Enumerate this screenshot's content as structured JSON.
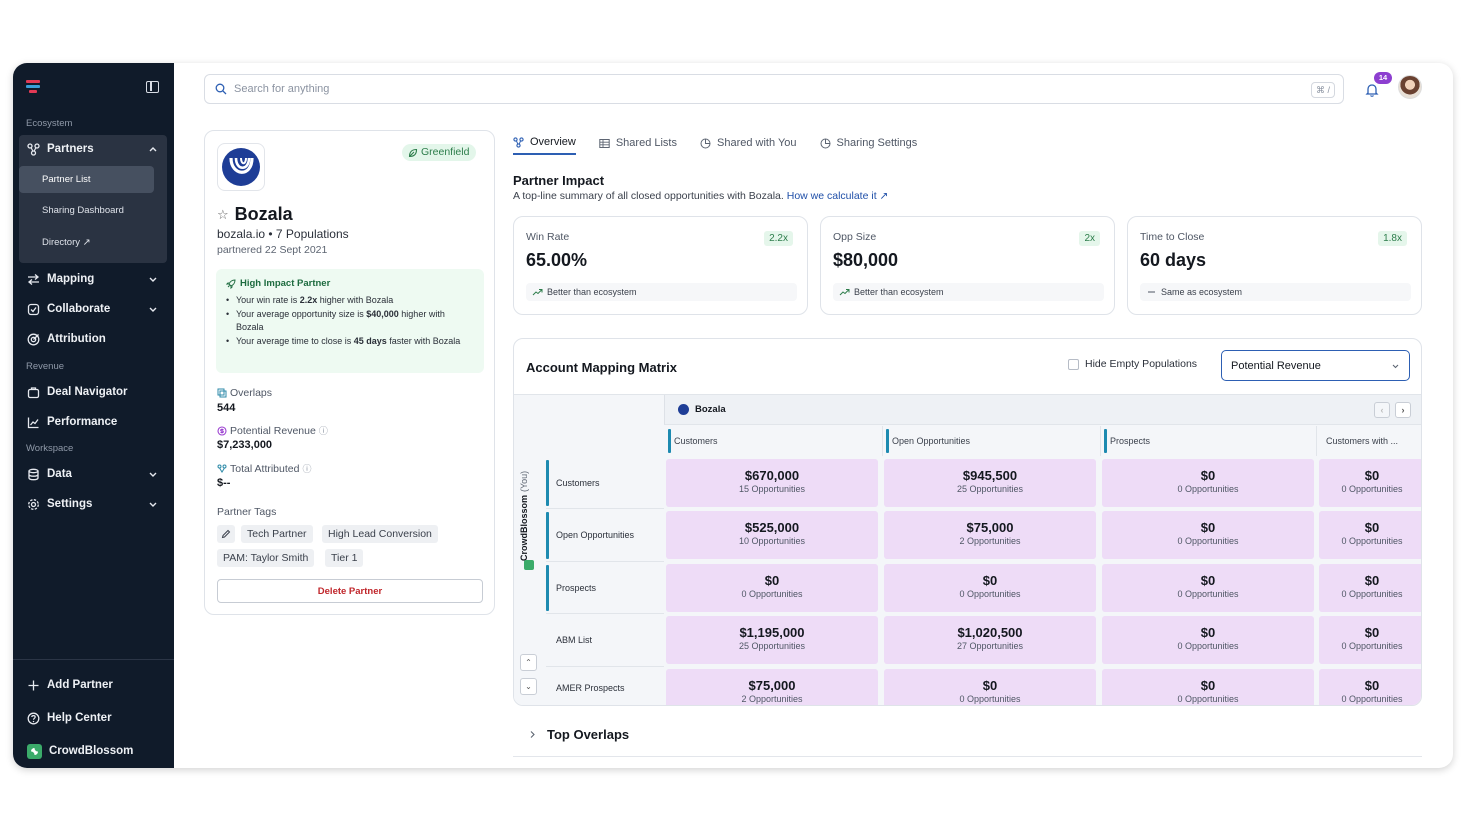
{
  "sidebar": {
    "sections": {
      "ecosystem": "Ecosystem",
      "revenue": "Revenue",
      "workspace": "Workspace"
    },
    "partners": {
      "label": "Partners",
      "icon": "partners-icon",
      "sub": [
        "Partner List",
        "Sharing Dashboard",
        "Directory ↗"
      ]
    },
    "items": {
      "mapping": "Mapping",
      "collaborate": "Collaborate",
      "attribution": "Attribution",
      "deal_navigator": "Deal Navigator",
      "performance": "Performance",
      "data": "Data",
      "settings": "Settings"
    },
    "bottom": {
      "add_partner": "Add Partner",
      "help_center": "Help Center",
      "org": "CrowdBlossom"
    }
  },
  "search": {
    "placeholder": "Search for anything",
    "shortcut": "⌘ /"
  },
  "notifications": {
    "count": "14"
  },
  "partner": {
    "status": "Greenfield",
    "name": "Bozala",
    "domain_populations": "bozala.io • 7 Populations",
    "partnered": "partnered 22 Sept 2021",
    "high_impact": {
      "title": "High Impact Partner",
      "b1_pre": "Your win rate is ",
      "b1_bold": "2.2x",
      "b1_post": " higher with Bozala",
      "b2_pre": "Your average opportunity size is ",
      "b2_bold": "$40,000",
      "b2_post": " higher with Bozala",
      "b3_pre": "Your average time to close is ",
      "b3_bold": "45 days",
      "b3_post": " faster with Bozala"
    },
    "overlaps_label": "Overlaps",
    "overlaps_value": "544",
    "potential_label": "Potential Revenue",
    "potential_value": "$7,233,000",
    "attributed_label": "Total Attributed",
    "attributed_value": "$--",
    "tags_label": "Partner Tags",
    "tags": [
      "Tech Partner",
      "High Lead Conversion",
      "PAM: Taylor Smith",
      "Tier 1"
    ],
    "delete_label": "Delete Partner"
  },
  "tabs": [
    "Overview",
    "Shared Lists",
    "Shared with You",
    "Sharing Settings"
  ],
  "impact": {
    "title": "Partner Impact",
    "subtitle": "A top-line summary of all closed opportunities with Bozala.",
    "link": "How we calculate it ↗",
    "kpis": [
      {
        "label": "Win Rate",
        "mult": "2.2x",
        "value": "65.00%",
        "compare": "Better than ecosystem"
      },
      {
        "label": "Opp Size",
        "mult": "2x",
        "value": "$80,000",
        "compare": "Better than ecosystem"
      },
      {
        "label": "Time to Close",
        "mult": "1.8x",
        "value": "60 days",
        "compare": "Same as ecosystem"
      }
    ]
  },
  "matrix": {
    "title": "Account Mapping Matrix",
    "hide_empty": "Hide Empty Populations",
    "metric": "Potential Revenue",
    "partner": "Bozala",
    "you_org": "CrowdBlossom",
    "you_suffix": "(You)",
    "columns": [
      "Customers",
      "Open Opportunities",
      "Prospects",
      "Customers with ..."
    ],
    "rows": [
      {
        "label": "Customers",
        "cells": [
          [
            "$670,000",
            "15 Opportunities"
          ],
          [
            "$945,500",
            "25 Opportunities"
          ],
          [
            "$0",
            "0 Opportunities"
          ],
          [
            "$0",
            "0 Opportunities"
          ]
        ]
      },
      {
        "label": "Open Opportunities",
        "cells": [
          [
            "$525,000",
            "10 Opportunities"
          ],
          [
            "$75,000",
            "2 Opportunities"
          ],
          [
            "$0",
            "0 Opportunities"
          ],
          [
            "$0",
            "0 Opportunities"
          ]
        ]
      },
      {
        "label": "Prospects",
        "cells": [
          [
            "$0",
            "0 Opportunities"
          ],
          [
            "$0",
            "0 Opportunities"
          ],
          [
            "$0",
            "0 Opportunities"
          ],
          [
            "$0",
            "0 Opportunities"
          ]
        ]
      },
      {
        "label": "ABM List",
        "cells": [
          [
            "$1,195,000",
            "25 Opportunities"
          ],
          [
            "$1,020,500",
            "27 Opportunities"
          ],
          [
            "$0",
            "0 Opportunities"
          ],
          [
            "$0",
            "0 Opportunities"
          ]
        ]
      },
      {
        "label": "AMER Prospects",
        "cells": [
          [
            "$75,000",
            "2 Opportunities"
          ],
          [
            "$0",
            "0 Opportunities"
          ],
          [
            "$0",
            "0 Opportunities"
          ],
          [
            "$0",
            "0 Opportunities"
          ]
        ]
      }
    ]
  },
  "top_overlaps": "Top Overlaps",
  "colors": {
    "sidebar_bg": "#101b2a",
    "accent": "#2d5fb3",
    "cell_bg": "#eedcf7",
    "good": "#2d7d4b"
  }
}
